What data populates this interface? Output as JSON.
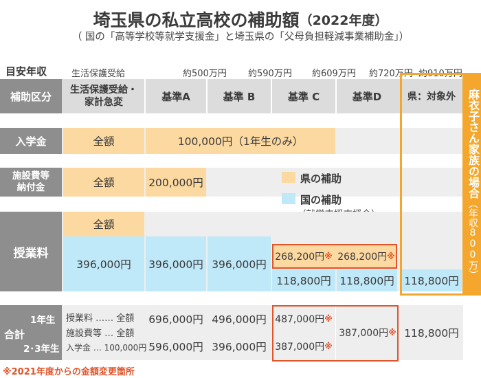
{
  "title": "埼玉県の私立高校の補助額",
  "title_year": "（2022年度）",
  "subtitle": "（ 国の「高等学校等就学支援金」と埼玉県の「父母負担軽減事業補助金」）",
  "income": {
    "label": "目安年収",
    "welfare": "生活保護受給",
    "t1": "約500万円",
    "t2": "約590万円",
    "t3": "約609万円",
    "t4": "約720万円",
    "t5": "約910万円"
  },
  "header": {
    "label": "補助区分",
    "col0_line1": "生活保護受給・",
    "col0_line2": "家計急変",
    "colA": "基準A",
    "colB": "基準 B",
    "colC": "基準 C",
    "colD": "基準D",
    "colOut": "県：対象外"
  },
  "admission": {
    "label": "入学金",
    "col0": "全額",
    "span": "100,000円（1年生のみ）"
  },
  "facility": {
    "label_line1": "施設費等",
    "label_line2": "納付金",
    "col0": "全額",
    "colA": "200,000円"
  },
  "legend": {
    "pref": "県の補助",
    "nat_line1": "国の補助",
    "nat_line2": "（就学支援支援金）"
  },
  "tuition": {
    "label": "授業料",
    "pref_col0": "全額",
    "nat_col0": "396,000円",
    "nat_colA": "396,000円",
    "nat_colB": "396,000円",
    "pref_colC": "268,200円",
    "pref_colD": "268,200円",
    "nat_colC": "118,800円",
    "nat_colD": "118,800円",
    "nat_colOut": "118,800円"
  },
  "side_label": "麻衣子さん家族の場合",
  "side_paren": "（年収800万）",
  "totals": {
    "label": "合計",
    "year1": "1年生",
    "year23": "2･3年生",
    "desc1": "授業料 …… 全額",
    "desc2": "施設費等 … 全額",
    "desc3": "入学金 … 100,000円",
    "a_y1": "696,000円",
    "b_y1": "496,000円",
    "c_y1": "487,000円",
    "a_y23": "596,000円",
    "b_y23": "396,000円",
    "c_y23": "387,000円",
    "d": "387,000円",
    "out": "118,800円"
  },
  "mark": "※",
  "footnote": "※2021年度からの金額変更箇所",
  "colors": {
    "pref": "#fcd9a0",
    "nat": "#bfe8f8",
    "accent_red": "#e2542a",
    "accent_orange": "#f4a72c",
    "row_label": "#8e8e8e",
    "header": "#dcdcdc",
    "band": "#eeeeee"
  }
}
